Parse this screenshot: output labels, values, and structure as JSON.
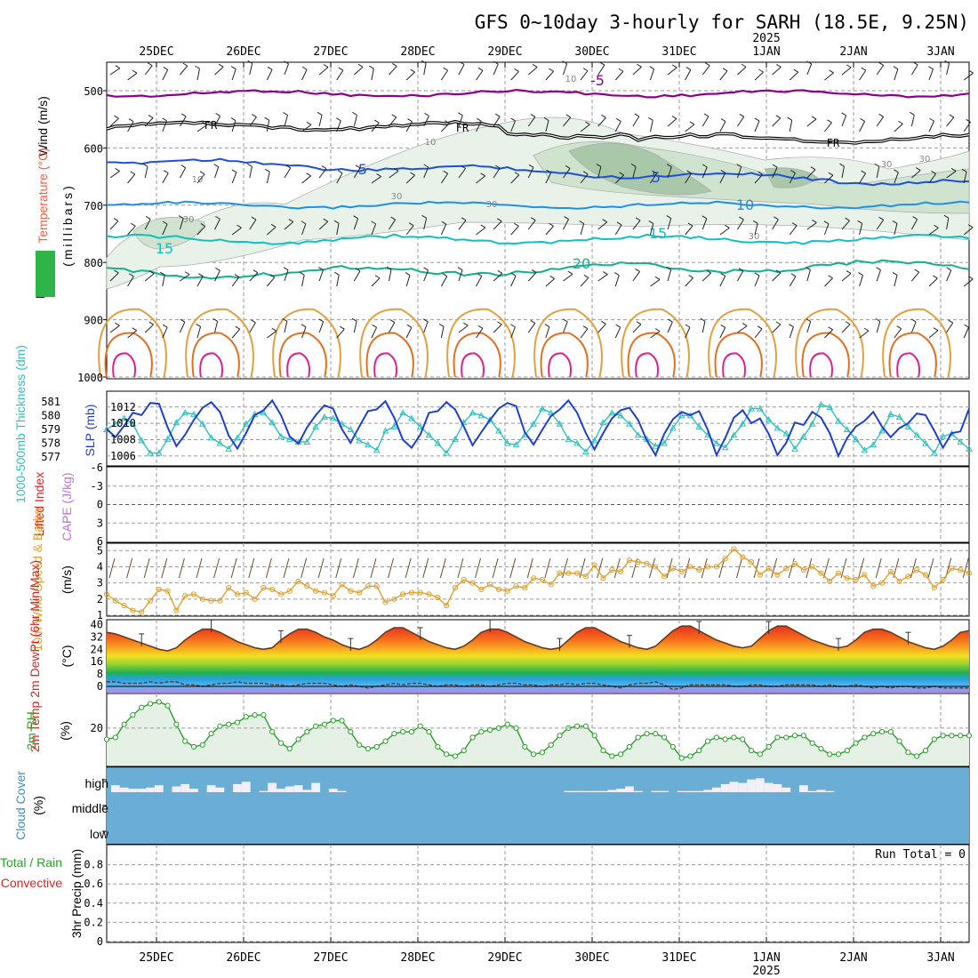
{
  "title": "GFS 0~10day 3-hourly for SARH (18.5E, 9.25N)",
  "colors": {
    "temp_lines": [
      "#8b008b",
      "#1e4fd8",
      "#1e90e6",
      "#10c0c0",
      "#10b090",
      "#e0a040",
      "#e07020",
      "#e0208a"
    ],
    "freezing": "#000000",
    "rh_fill": [
      "#e8f2e8",
      "#cfe3cf",
      "#a9c7a9"
    ],
    "slp": "#1e3fd0",
    "thickness": "#30c0c0",
    "lifted_zero": "#dd2222",
    "wind_speed": "#e0a030",
    "rh2m": "#2aa02a",
    "cloud": "#6aaed6",
    "cloud_clear": "#f3eff8"
  },
  "chart_data": [
    {
      "panel": "upper",
      "type": "line",
      "ylabel_parts": [
        "Wind (m/s)",
        "Temperature (°C)",
        "RH (%)"
      ],
      "ylabel2": "(millibars)",
      "y_ticks": [
        "500",
        "600",
        "700",
        "800",
        "900",
        "1000"
      ],
      "ylim": [
        500,
        1000
      ],
      "isotherm_labels": [
        "-5",
        "5",
        "5",
        "10",
        "15",
        "15",
        "20"
      ],
      "freezing_labels": [
        "FR",
        "FR",
        "FR"
      ],
      "rh_labels": [
        "10",
        "10",
        "10",
        "30",
        "30",
        "30",
        "30",
        "30",
        "30"
      ]
    },
    {
      "panel": "slp_thickness",
      "type": "line",
      "ylabel_left": "1000-500mb Thickness (dm)",
      "ylabel_right": "SLP (mb)",
      "left_ticks": [
        "581",
        "580",
        "579",
        "578",
        "577"
      ],
      "right_ticks": [
        "1012",
        "1010",
        "1008",
        "1006"
      ],
      "series": [
        {
          "name": "SLP (mb)",
          "values": [
            1009.3,
            1008.3,
            1009.7,
            1011.3,
            1011.0,
            1012.5,
            1012.4,
            1009.5,
            1007.2,
            1008.6,
            1010.4,
            1011.9,
            1012.6,
            1011.4,
            1008.5,
            1006.9,
            1008.8,
            1011.0,
            1011.6,
            1012.8,
            1011.0,
            1008.4,
            1007.5,
            1009.5,
            1011.0,
            1012.2,
            1011.8,
            1009.3,
            1007.6,
            1009.6,
            1011.5,
            1011.7,
            1012.7,
            1010.7,
            1008.0,
            1007.0,
            1008.6,
            1011.3,
            1011.5,
            1012.6,
            1011.7,
            1009.6,
            1007.3,
            1008.9,
            1010.4,
            1011.8,
            1012.5,
            1012.1,
            1008.9,
            1007.4,
            1009.2,
            1010.9,
            1011.7,
            1012.8,
            1011.3,
            1008.8,
            1006.8,
            1008.8,
            1010.6,
            1011.6,
            1011.9,
            1010.4,
            1007.9,
            1006.1,
            1008.7,
            1010.5,
            1011.4,
            1011.0,
            1011.5,
            1009.2,
            1006.1,
            1008.2,
            1010.7,
            1011.6,
            1010.0,
            1010.6,
            1008.7,
            1006.1,
            1007.6,
            1010.1,
            1009.8,
            1011.4,
            1010.7,
            1008.8,
            1006.0,
            1008.2,
            1009.6,
            1010.3,
            1011.4,
            1009.6,
            1008.3,
            1009.4,
            1010.0,
            1011.2,
            1011.0,
            1009.1,
            1007.0,
            1008.8,
            1009.0,
            1011.8
          ]
        },
        {
          "name": "1000-500mb Thickness (dm)",
          "values": [
            579.0,
            579.4,
            579.8,
            579.4,
            578.2,
            577.3,
            577.3,
            578.3,
            579.5,
            580.2,
            580.1,
            579.4,
            578.4,
            578.0,
            577.6,
            578.4,
            579.4,
            580.1,
            580.2,
            579.5,
            578.5,
            578.3,
            578.1,
            578.1,
            579.2,
            579.9,
            579.8,
            579.4,
            579.0,
            578.2,
            577.9,
            577.5,
            578.9,
            579.2,
            580.2,
            579.8,
            579.2,
            578.6,
            578.0,
            577.3,
            578.3,
            579.5,
            580.2,
            580.0,
            579.7,
            578.9,
            578.0,
            577.9,
            578.6,
            579.4,
            580.5,
            580.2,
            579.4,
            578.3,
            578.0,
            577.4,
            578.2,
            579.5,
            580.2,
            580.0,
            579.4,
            578.6,
            578.3,
            577.8,
            578.0,
            579.1,
            580.0,
            580.0,
            579.2,
            578.6,
            578.0,
            577.7,
            578.6,
            579.4,
            580.5,
            580.5,
            579.7,
            579.1,
            578.7,
            577.6,
            578.5,
            579.4,
            580.8,
            580.6,
            579.6,
            579.0,
            578.3,
            577.5,
            577.9,
            578.9,
            580.1,
            579.9,
            579.2,
            578.6,
            578.0,
            577.3,
            578.5,
            578.7,
            578.1,
            577.6
          ]
        }
      ]
    },
    {
      "panel": "lifted_cape",
      "type": "line",
      "ylabel_left": "Lifted Index",
      "ylabel_right": "CAPE (J/kg)",
      "y_ticks": [
        "-6",
        "-3",
        "0",
        "3",
        "6"
      ],
      "ylim": [
        -6,
        6
      ]
    },
    {
      "panel": "wind10m",
      "type": "line",
      "ylabel": "10m Wind Speed & Barbs",
      "unit": "(m/s)",
      "y_ticks": [
        "5",
        "4",
        "3",
        "2",
        "1"
      ],
      "ylim": [
        1,
        5.4
      ],
      "series": [
        {
          "name": "10m Wind Speed",
          "values": [
            2.3,
            1.9,
            1.6,
            1.3,
            1.2,
            1.9,
            2.6,
            2.5,
            1.3,
            2.2,
            2.3,
            2.0,
            1.9,
            1.9,
            2.7,
            2.3,
            2.4,
            2.0,
            2.7,
            2.6,
            2.3,
            2.5,
            3.1,
            2.8,
            2.5,
            2.4,
            2.2,
            2.9,
            2.5,
            2.4,
            2.8,
            2.8,
            1.8,
            2.0,
            2.3,
            2.4,
            2.4,
            2.3,
            2.1,
            1.6,
            2.7,
            3.2,
            3.0,
            2.6,
            2.9,
            2.6,
            2.5,
            2.8,
            2.7,
            3.3,
            3.2,
            2.9,
            3.6,
            3.6,
            3.6,
            3.4,
            4.1,
            3.3,
            3.8,
            3.7,
            4.4,
            4.3,
            4.2,
            4.0,
            3.4,
            3.9,
            3.7,
            4.0,
            3.8,
            4.0,
            4.0,
            4.5,
            5.1,
            4.6,
            4.3,
            3.5,
            3.9,
            3.5,
            3.9,
            4.2,
            3.8,
            4.0,
            3.6,
            3.1,
            3.6,
            3.3,
            3.2,
            3.5,
            2.8,
            3.0,
            3.7,
            3.1,
            3.4,
            3.8,
            3.5,
            2.7,
            3.2,
            3.9,
            3.8,
            3.6
          ]
        }
      ]
    },
    {
      "panel": "temp2m",
      "type": "area",
      "ylabel": "2m Temp 2m DewPt (6hr Min/Max)",
      "unit": "(°C)",
      "y_ticks": [
        "40",
        "32",
        "24",
        "16",
        "8",
        "0"
      ],
      "ylim": [
        -4,
        40
      ],
      "series": [
        {
          "name": "2m Temp",
          "values": [
            35,
            34,
            32,
            30,
            28,
            26,
            24,
            23,
            25,
            30,
            34,
            37,
            37,
            35,
            32,
            29,
            27,
            25,
            24,
            25,
            30,
            34,
            37,
            37,
            35,
            32,
            30,
            27,
            25,
            24,
            26,
            30,
            35,
            38,
            38,
            35,
            32,
            29,
            27,
            25,
            24,
            26,
            30,
            35,
            37,
            37,
            35,
            32,
            29,
            27,
            25,
            24,
            25,
            30,
            35,
            38,
            38,
            35,
            32,
            29,
            27,
            25,
            24,
            26,
            31,
            36,
            39,
            39,
            36,
            33,
            30,
            28,
            26,
            25,
            26,
            31,
            36,
            39,
            39,
            36,
            33,
            30,
            28,
            26,
            25,
            26,
            30,
            35,
            37,
            37,
            35,
            32,
            29,
            27,
            25,
            24,
            26,
            30,
            35,
            36
          ]
        },
        {
          "name": "2m DewPt",
          "values": [
            3,
            3,
            2,
            2,
            2,
            3,
            2,
            3,
            3,
            1,
            1,
            0,
            1,
            2,
            2,
            3,
            2,
            2,
            2,
            1,
            1,
            0,
            1,
            2,
            2,
            2,
            1,
            0,
            1,
            0,
            -1,
            0,
            1,
            2,
            1,
            2,
            2,
            1,
            0,
            1,
            1,
            0,
            1,
            1,
            0,
            1,
            2,
            2,
            1,
            1,
            0,
            1,
            1,
            2,
            1,
            2,
            2,
            1,
            0,
            -1,
            1,
            2,
            2,
            3,
            1,
            -2,
            -1,
            1,
            1,
            1,
            1,
            1,
            0,
            0,
            1,
            1,
            0,
            0,
            1,
            1,
            1,
            1,
            0,
            1,
            0,
            0,
            1,
            0,
            -1,
            0,
            -1,
            0,
            0,
            -1,
            -1,
            0,
            -1,
            -1,
            -1,
            -1
          ]
        }
      ]
    },
    {
      "panel": "rh2m",
      "type": "area",
      "ylabel": "2m RH",
      "unit": "(%)",
      "y_ticks": [
        "20"
      ],
      "series": [
        {
          "name": "2m RH",
          "values": [
            14,
            15,
            22,
            27,
            31,
            33,
            34,
            32,
            22,
            13,
            10,
            11,
            17,
            21,
            22,
            23,
            26,
            27,
            27,
            18,
            12,
            9,
            14,
            18,
            21,
            22,
            24,
            24,
            18,
            11,
            9,
            10,
            13,
            17,
            18,
            18,
            21,
            18,
            10,
            6,
            5,
            8,
            15,
            18,
            19,
            20,
            22,
            20,
            10,
            6,
            7,
            11,
            16,
            20,
            21,
            21,
            16,
            8,
            5,
            6,
            10,
            15,
            17,
            17,
            15,
            10,
            4,
            5,
            8,
            13,
            15,
            14,
            15,
            14,
            8,
            6,
            10,
            15,
            15,
            16,
            16,
            12,
            9,
            6,
            6,
            8,
            12,
            15,
            17,
            18,
            18,
            13,
            7,
            5,
            8,
            14,
            16,
            16,
            16,
            16
          ]
        }
      ]
    },
    {
      "panel": "cloud",
      "type": "bar",
      "ylabel": "Cloud Cover",
      "unit": "(%)",
      "levels": [
        "high",
        "middle",
        "low"
      ],
      "high_cover_percent": [
        0,
        30,
        20,
        15,
        15,
        20,
        30,
        0,
        25,
        35,
        15,
        0,
        30,
        20,
        0,
        35,
        45,
        0,
        5,
        40,
        15,
        25,
        30,
        10,
        40,
        0,
        15,
        5,
        0,
        0,
        0,
        0,
        0,
        0,
        0,
        0,
        0,
        0,
        0,
        0,
        0,
        0,
        0,
        0,
        0,
        0,
        0,
        0,
        0,
        0,
        0,
        0,
        0,
        5,
        5,
        5,
        5,
        5,
        10,
        15,
        25,
        5,
        0,
        5,
        5,
        0,
        5,
        5,
        5,
        10,
        20,
        35,
        45,
        40,
        55,
        60,
        40,
        35,
        20,
        0,
        30,
        5,
        10,
        5,
        0,
        0,
        0,
        0,
        0,
        0,
        0,
        0,
        0,
        0,
        0,
        0,
        0,
        0,
        0,
        0
      ]
    },
    {
      "panel": "precip",
      "type": "bar",
      "ylabel": "3hr Precip (mm)",
      "ylabel_left": [
        "Total / Rain",
        "Convective"
      ],
      "y_ticks": [
        "0.8",
        "0.6",
        "0.4",
        "0.2",
        "0"
      ],
      "ylim": [
        0,
        1
      ],
      "annotation": "Run Total = 0",
      "values": []
    }
  ],
  "date_axis": {
    "top": [
      "25DEC",
      "26DEC",
      "27DEC",
      "28DEC",
      "29DEC",
      "30DEC",
      "31DEC",
      "1JAN",
      "2JAN",
      "3JAN"
    ],
    "year_label": "2025",
    "bottom": [
      "25DEC",
      "26DEC",
      "27DEC",
      "28DEC",
      "29DEC",
      "30DEC",
      "31DEC",
      "1JAN",
      "2JAN",
      "3JAN"
    ]
  }
}
